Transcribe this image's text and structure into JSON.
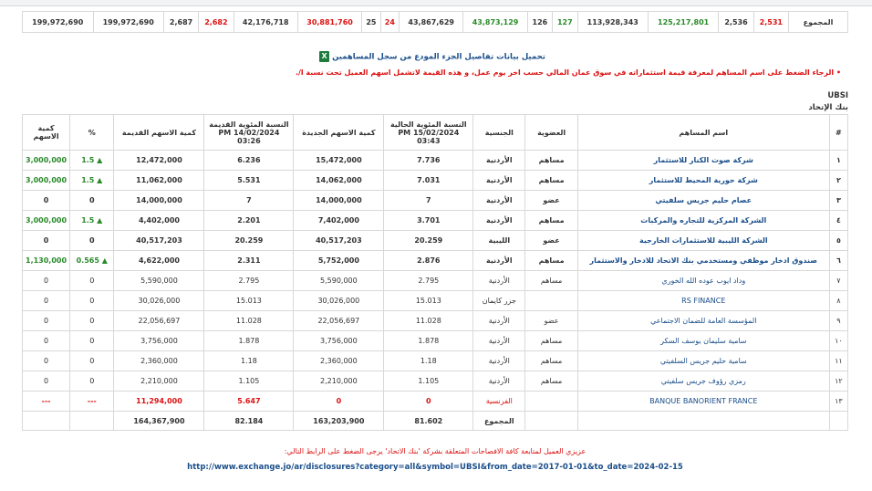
{
  "summary_row": {
    "label": "المجموع",
    "cells": [
      "2,531",
      "2,536",
      "125,217,801",
      "113,928,343",
      "127",
      "126",
      "43,873,129",
      "43,867,629",
      "24",
      "25",
      "30,881,760",
      "42,176,718",
      "2,682",
      "2,687",
      "199,972,690",
      "199,972,690"
    ]
  },
  "download_label": "تحميل بيانات تفاصيل الجزء المودع من سجل المساهمين",
  "note": "الرجاء الضغط على اسم المساهم لمعرفة قيمة استثماراته في سوق عمان المالي حسب اخر يوم عمل، و هذه القيمة لاتشمل اسهم العميل تحت نسبة ا/.",
  "symbol": "UBSI",
  "bank_name": "بنك الإتحاد",
  "headers": {
    "num": "#",
    "name": "اسم المساهم",
    "membership": "العضوية",
    "nationality": "الجنسية",
    "pct_current": "النسبة المئوية الحالية 15/02/2024 PM 03:43",
    "new_shares": "كمية الاسهم الجديدة",
    "pct_old": "النسبة المئوية القديمة 14/02/2024 PM 03:26",
    "old_shares": "كمية الاسهم القديمة",
    "pct": "%",
    "qty": "كمية الاسهم"
  },
  "rows": [
    {
      "num": "١",
      "name": "شركة صوت الكنار للاستثمار",
      "membership": "مساهم",
      "nationality": "الأردنية",
      "pct_current": "7.736",
      "new_shares": "15,472,000",
      "pct_old": "6.236",
      "old_shares": "12,472,000",
      "pct": "1.5",
      "qty": "3,000,000",
      "arrow": "▲",
      "style": "up"
    },
    {
      "num": "٢",
      "name": "شركة حورية المحيط للاستثمار",
      "membership": "مساهم",
      "nationality": "الأردنية",
      "pct_current": "7.031",
      "new_shares": "14,062,000",
      "pct_old": "5.531",
      "old_shares": "11,062,000",
      "pct": "1.5",
      "qty": "3,000,000",
      "arrow": "▲",
      "style": "up"
    },
    {
      "num": "٣",
      "name": "عصام حليم جريس سلفيتي",
      "membership": "عضو",
      "nationality": "الأردنية",
      "pct_current": "7",
      "new_shares": "14,000,000",
      "pct_old": "7",
      "old_shares": "14,000,000",
      "pct": "0",
      "qty": "0",
      "arrow": "",
      "style": "flat"
    },
    {
      "num": "٤",
      "name": "الشركة المركزية للتجاره والمركبات",
      "membership": "مساهم",
      "nationality": "الأردنية",
      "pct_current": "3.701",
      "new_shares": "7,402,000",
      "pct_old": "2.201",
      "old_shares": "4,402,000",
      "pct": "1.5",
      "qty": "3,000,000",
      "arrow": "▲",
      "style": "up"
    },
    {
      "num": "٥",
      "name": "الشركة الليبية للاستثمارات الخارجية",
      "membership": "عضو",
      "nationality": "الليبية",
      "pct_current": "20.259",
      "new_shares": "40,517,203",
      "pct_old": "20.259",
      "old_shares": "40,517,203",
      "pct": "0",
      "qty": "0",
      "arrow": "",
      "style": "flat"
    },
    {
      "num": "٦",
      "name": "صندوق ادخار موظفي ومستخدمي بنك الاتحاد للادخار والاستثمار",
      "membership": "مساهم",
      "nationality": "الأردنية",
      "pct_current": "2.876",
      "new_shares": "5,752,000",
      "pct_old": "2.311",
      "old_shares": "4,622,000",
      "pct": "0.565",
      "qty": "1,130,000",
      "arrow": "▲",
      "style": "up"
    },
    {
      "num": "٧",
      "name": "وداد ايوب عوده الله الخوري",
      "membership": "مساهم",
      "nationality": "الأردنية",
      "pct_current": "2.795",
      "new_shares": "5,590,000",
      "pct_old": "2.795",
      "old_shares": "5,590,000",
      "pct": "0",
      "qty": "0",
      "arrow": "",
      "style": "plain"
    },
    {
      "num": "٨",
      "name": "RS FINANCE",
      "membership": "",
      "nationality": "جزر كايمان",
      "pct_current": "15.013",
      "new_shares": "30,026,000",
      "pct_old": "15.013",
      "old_shares": "30,026,000",
      "pct": "0",
      "qty": "0",
      "arrow": "",
      "style": "plain"
    },
    {
      "num": "٩",
      "name": "المؤسسة العامة للضمان الاجتماعي",
      "membership": "عضو",
      "nationality": "الأردنية",
      "pct_current": "11.028",
      "new_shares": "22,056,697",
      "pct_old": "11.028",
      "old_shares": "22,056,697",
      "pct": "0",
      "qty": "0",
      "arrow": "",
      "style": "plain"
    },
    {
      "num": "١٠",
      "name": "سامية سليمان يوسف السكر",
      "membership": "مساهم",
      "nationality": "الأردنية",
      "pct_current": "1.878",
      "new_shares": "3,756,000",
      "pct_old": "1.878",
      "old_shares": "3,756,000",
      "pct": "0",
      "qty": "0",
      "arrow": "",
      "style": "plain"
    },
    {
      "num": "١١",
      "name": "سامية حليم جريس السلفيتي",
      "membership": "مساهم",
      "nationality": "الأردنية",
      "pct_current": "1.18",
      "new_shares": "2,360,000",
      "pct_old": "1.18",
      "old_shares": "2,360,000",
      "pct": "0",
      "qty": "0",
      "arrow": "",
      "style": "plain"
    },
    {
      "num": "١٢",
      "name": "رمزي رؤوف جريس سلفيتي",
      "membership": "مساهم",
      "nationality": "الأردنية",
      "pct_current": "1.105",
      "new_shares": "2,210,000",
      "pct_old": "1.105",
      "old_shares": "2,210,000",
      "pct": "0",
      "qty": "0",
      "arrow": "",
      "style": "plain"
    },
    {
      "num": "١٣",
      "name": "BANQUE BANORIENT FRANCE",
      "membership": "",
      "nationality": "الفرنسية",
      "pct_current": "0",
      "new_shares": "0",
      "pct_old": "5.647",
      "old_shares": "11,294,000",
      "pct": "---",
      "qty": "---",
      "arrow": "",
      "style": "red"
    }
  ],
  "totals": {
    "label": "المجموع",
    "pct_current": "81.602",
    "new_shares": "163,203,900",
    "pct_old": "82.184",
    "old_shares": "164,367,900"
  },
  "footer": {
    "line1": "عزيزي العميل لمتابعة كافة الافصاحات المتعلقة بشركة 'بنك الاتحاد' يرجى الضغط على الرابط التالي:",
    "link": "http://www.exchange.jo/ar/disclosures?category=all&symbol=UBSI&from_date=2017-01-01&to_date=2024-02-15"
  },
  "colors": {
    "red": "#dd1111",
    "green": "#2a8a2a",
    "link": "#1a4e8a"
  }
}
